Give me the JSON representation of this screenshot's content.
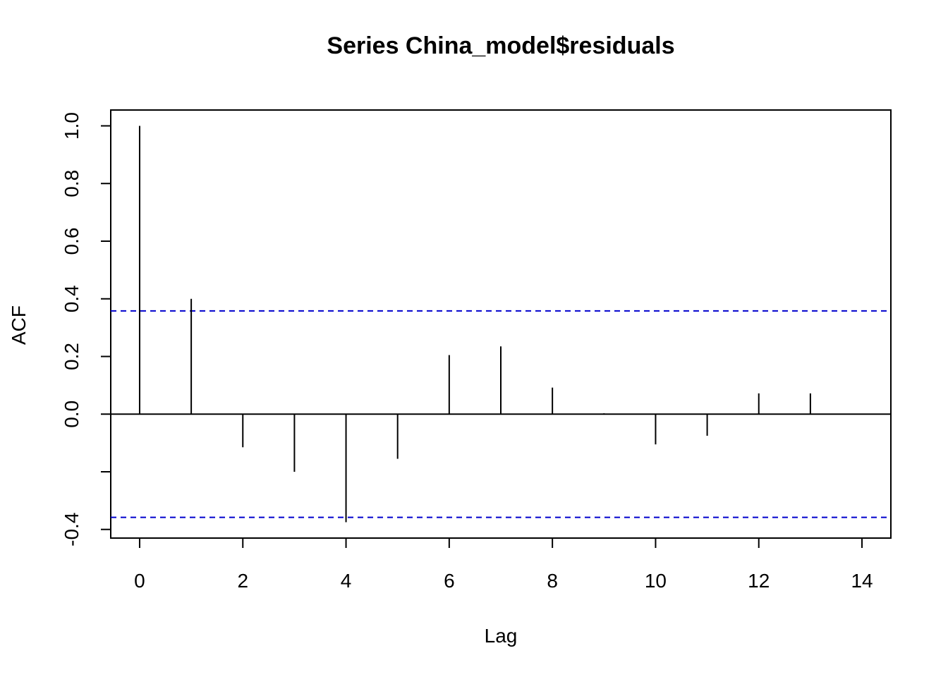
{
  "chart_data": {
    "type": "bar",
    "title": "Series  China_model$residuals",
    "xlabel": "Lag",
    "ylabel": "ACF",
    "lags": [
      0,
      1,
      2,
      3,
      4,
      5,
      6,
      7,
      8,
      9,
      10,
      11,
      12,
      13
    ],
    "values": [
      1.0,
      0.4,
      -0.115,
      -0.2,
      -0.375,
      -0.155,
      0.205,
      0.235,
      0.092,
      0.003,
      -0.105,
      -0.075,
      0.072,
      0.072
    ],
    "xlim": [
      -0.56,
      14.56
    ],
    "ylim": [
      -0.43,
      1.055
    ],
    "xticks": [
      "0",
      "2",
      "4",
      "6",
      "8",
      "10",
      "12",
      "14"
    ],
    "yticks": [
      "-0.4",
      "0.0",
      "0.2",
      "0.4",
      "0.6",
      "0.8",
      "1.0"
    ],
    "yticks_unlabeled": [
      -0.2
    ],
    "confidence_bound": 0.358,
    "colors": {
      "bars": "#000000",
      "confidence": "#0000cd",
      "zero_line": "#000000"
    }
  }
}
